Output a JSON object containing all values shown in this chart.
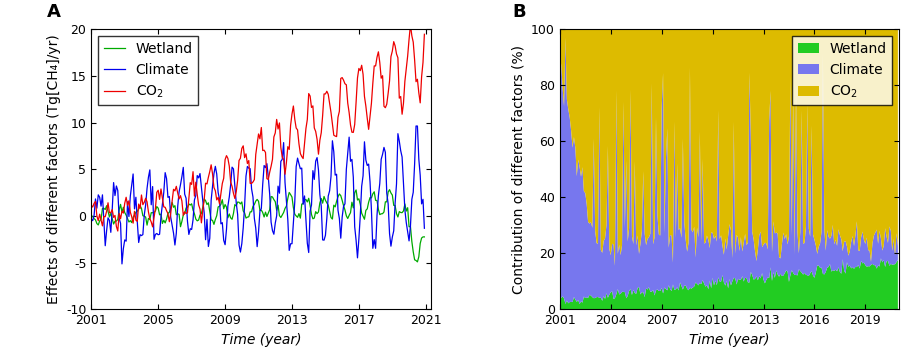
{
  "panel_A": {
    "title": "A",
    "ylabel": "Effects of different factors (Tg[CH₄]/yr)",
    "xlabel": "Time (year)",
    "ylim": [
      -10,
      20
    ],
    "yticks": [
      -10,
      -5,
      0,
      5,
      10,
      15,
      20
    ],
    "xticks": [
      2001,
      2005,
      2009,
      2013,
      2017,
      2021
    ],
    "colors": {
      "Wetland": "#00aa00",
      "Climate": "#0000ee",
      "CO2": "#ee0000"
    }
  },
  "panel_B": {
    "title": "B",
    "ylabel": "Contribution of different factors (%)",
    "xlabel": "Time (year)",
    "ylim": [
      0,
      100
    ],
    "yticks": [
      0,
      20,
      40,
      60,
      80,
      100
    ],
    "xticks": [
      2001,
      2004,
      2007,
      2010,
      2013,
      2016,
      2019
    ],
    "colors": {
      "Wetland": "#22cc22",
      "Climate": "#7777ee",
      "CO2": "#ddbb00"
    }
  },
  "legend_fontsize": 10,
  "axis_label_fontsize": 10,
  "tick_fontsize": 9,
  "title_fontsize": 13,
  "n_months": 240,
  "start_year": 2001
}
